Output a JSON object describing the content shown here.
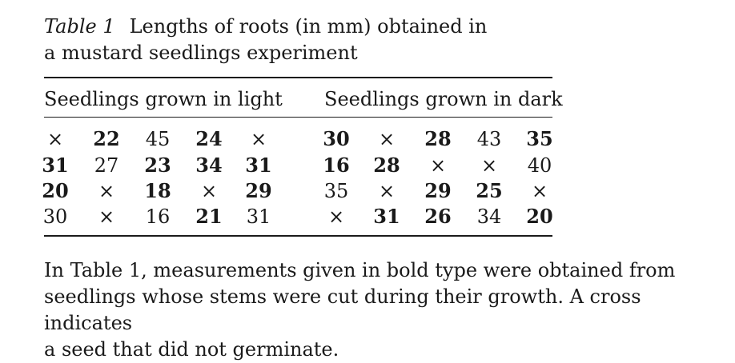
{
  "caption": {
    "label": "Table 1",
    "line1": "Lengths of roots (in mm) obtained in",
    "line2": "a mustard seedlings experiment"
  },
  "table": {
    "groups": [
      "Seedlings grown in light",
      "Seedlings grown in dark"
    ],
    "rows": [
      [
        {
          "v": "×",
          "b": false
        },
        {
          "v": "22",
          "b": true
        },
        {
          "v": "45",
          "b": false
        },
        {
          "v": "24",
          "b": true
        },
        {
          "v": "×",
          "b": false
        },
        {
          "v": "30",
          "b": true
        },
        {
          "v": "×",
          "b": false
        },
        {
          "v": "28",
          "b": true
        },
        {
          "v": "43",
          "b": false
        },
        {
          "v": "35",
          "b": true
        }
      ],
      [
        {
          "v": "31",
          "b": true
        },
        {
          "v": "27",
          "b": false
        },
        {
          "v": "23",
          "b": true
        },
        {
          "v": "34",
          "b": true
        },
        {
          "v": "31",
          "b": true
        },
        {
          "v": "16",
          "b": true
        },
        {
          "v": "28",
          "b": true
        },
        {
          "v": "×",
          "b": false
        },
        {
          "v": "×",
          "b": false
        },
        {
          "v": "40",
          "b": false
        }
      ],
      [
        {
          "v": "20",
          "b": true
        },
        {
          "v": "×",
          "b": false
        },
        {
          "v": "18",
          "b": true
        },
        {
          "v": "×",
          "b": false
        },
        {
          "v": "29",
          "b": true
        },
        {
          "v": "35",
          "b": false
        },
        {
          "v": "×",
          "b": false
        },
        {
          "v": "29",
          "b": true
        },
        {
          "v": "25",
          "b": true
        },
        {
          "v": "×",
          "b": false
        }
      ],
      [
        {
          "v": "30",
          "b": false
        },
        {
          "v": "×",
          "b": false
        },
        {
          "v": "16",
          "b": false
        },
        {
          "v": "21",
          "b": true
        },
        {
          "v": "31",
          "b": false
        },
        {
          "v": "×",
          "b": false
        },
        {
          "v": "31",
          "b": true
        },
        {
          "v": "26",
          "b": true
        },
        {
          "v": "34",
          "b": false
        },
        {
          "v": "20",
          "b": true
        }
      ]
    ]
  },
  "note": {
    "line1": "In Table 1, measurements given in bold type were obtained from",
    "line2": "seedlings whose stems were cut during their growth. A cross indicates",
    "line3": "a seed that did not germinate."
  }
}
